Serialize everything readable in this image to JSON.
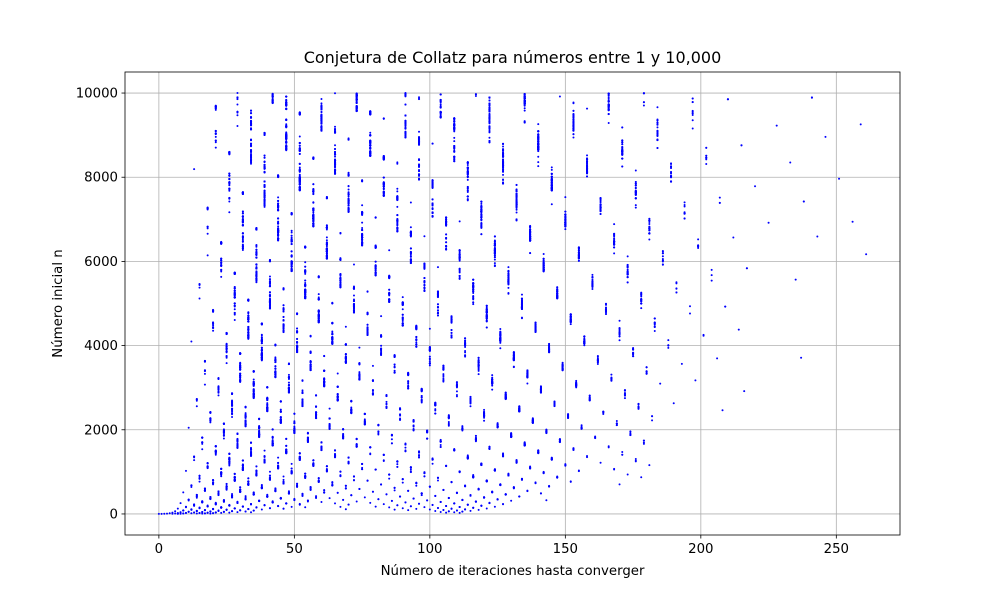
{
  "chart_data": {
    "type": "scatter",
    "title": "Conjetura de Collatz para números entre 1 y 10,000",
    "xlabel": "Número de iteraciones hasta converger",
    "ylabel": "Número inicial n",
    "xlim": [
      -12.5,
      273.5
    ],
    "ylim": [
      -500,
      10500
    ],
    "xticks": [
      0,
      50,
      100,
      150,
      200,
      250
    ],
    "yticks": [
      0,
      2000,
      4000,
      6000,
      8000,
      10000
    ],
    "grid": true,
    "marker_color": "#0000ff",
    "n_range": [
      1,
      10000
    ],
    "description_of_points": "Each point is (steps to reach 1 under the Collatz map, starting number n) for n from 1 to 10,000"
  }
}
